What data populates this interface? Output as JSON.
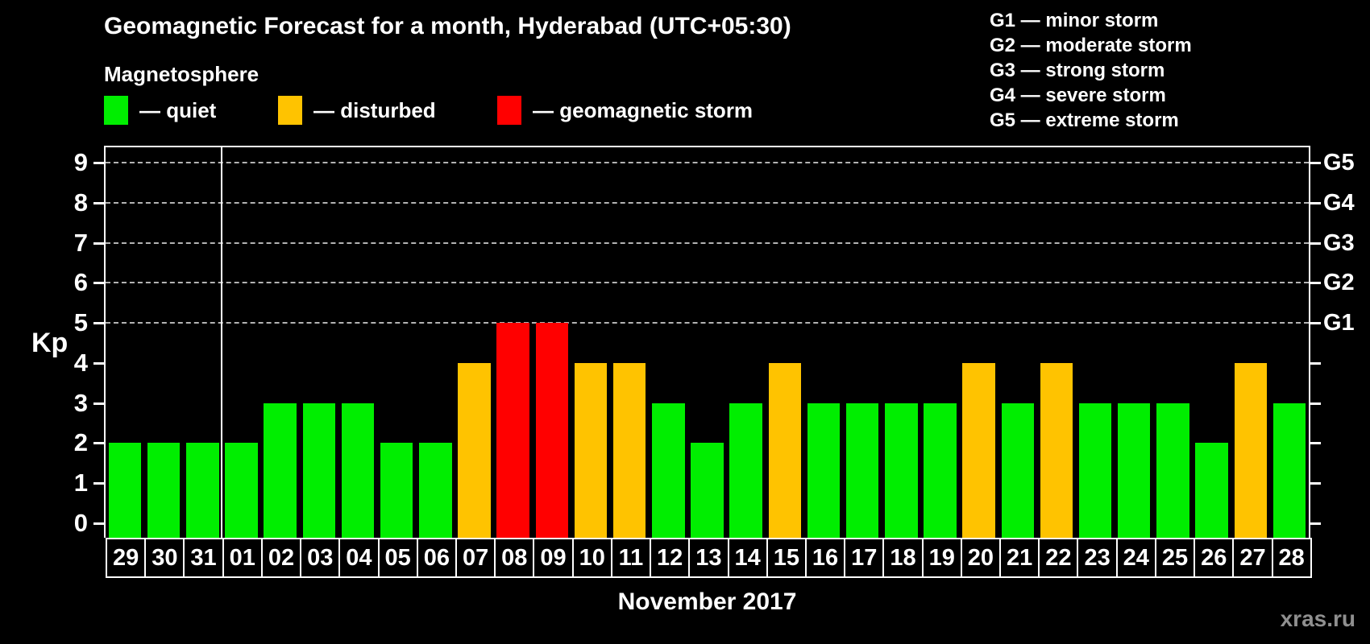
{
  "header": {
    "title": "Geomagnetic Forecast for a month, Hyderabad (UTC+05:30)",
    "subtitle": "Magnetosphere"
  },
  "legend": {
    "items": [
      {
        "id": "quiet",
        "color": "#00ee00",
        "label": "— quiet"
      },
      {
        "id": "disturbed",
        "color": "#ffc300",
        "label": "— disturbed"
      },
      {
        "id": "storm",
        "color": "#ff0000",
        "label": "— geomagnetic storm"
      }
    ]
  },
  "g_scale_legend": {
    "items": [
      "G1 — minor storm",
      "G2 — moderate storm",
      "G3 — strong storm",
      "G4 — severe storm",
      "G5 — extreme storm"
    ]
  },
  "chart_data": {
    "type": "bar",
    "title": "Geomagnetic Forecast for a month, Hyderabad (UTC+05:30)",
    "subtitle": "Magnetosphere",
    "xlabel": "November 2017",
    "ylabel": "Kp",
    "ylim": [
      0,
      9.4
    ],
    "grid": "dashed horizontal at Kp 5-9 (G1-G5)",
    "y_ticks": [
      0,
      1,
      2,
      3,
      4,
      5,
      6,
      7,
      8,
      9
    ],
    "gridlines_at": [
      5,
      6,
      7,
      8,
      9
    ],
    "right_axis": [
      {
        "label": "G1",
        "kp": 5
      },
      {
        "label": "G2",
        "kp": 6
      },
      {
        "label": "G3",
        "kp": 7
      },
      {
        "label": "G4",
        "kp": 8
      },
      {
        "label": "G5",
        "kp": 9
      }
    ],
    "categories": [
      "29",
      "30",
      "31",
      "01",
      "02",
      "03",
      "04",
      "05",
      "06",
      "07",
      "08",
      "09",
      "10",
      "11",
      "12",
      "13",
      "14",
      "15",
      "16",
      "17",
      "18",
      "19",
      "20",
      "21",
      "22",
      "23",
      "24",
      "25",
      "26",
      "27",
      "28"
    ],
    "values": [
      2,
      2,
      2,
      2,
      3,
      3,
      3,
      2,
      2,
      4,
      5,
      5,
      4,
      4,
      3,
      2,
      3,
      4,
      3,
      3,
      3,
      3,
      4,
      3,
      4,
      3,
      3,
      3,
      2,
      4,
      3
    ],
    "statuses": [
      "quiet",
      "quiet",
      "quiet",
      "quiet",
      "quiet",
      "quiet",
      "quiet",
      "quiet",
      "quiet",
      "disturbed",
      "storm",
      "storm",
      "disturbed",
      "disturbed",
      "quiet",
      "quiet",
      "quiet",
      "disturbed",
      "quiet",
      "quiet",
      "quiet",
      "quiet",
      "disturbed",
      "quiet",
      "disturbed",
      "quiet",
      "quiet",
      "quiet",
      "quiet",
      "disturbed",
      "quiet"
    ],
    "status_colors": {
      "quiet": "#00ee00",
      "disturbed": "#ffc300",
      "storm": "#ff0000"
    },
    "month_boundary_after": "31",
    "legend_position": "top-left (magnetosphere states) and top-right (G storm scale)"
  },
  "footer": {
    "month_label": "November 2017",
    "watermark": "xras.ru"
  }
}
